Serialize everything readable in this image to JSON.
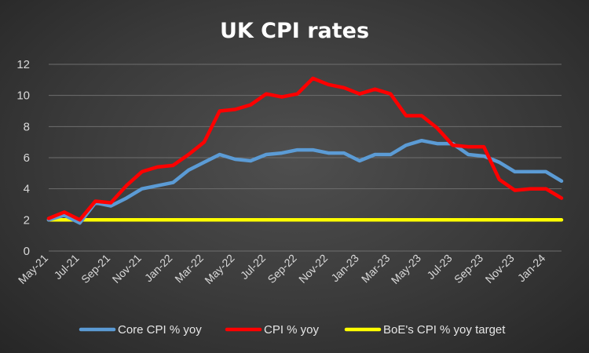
{
  "chart_data": {
    "type": "line",
    "title": "UK CPI rates",
    "xlabel": "",
    "ylabel": "",
    "ylim": [
      0,
      12
    ],
    "yticks": [
      0,
      2,
      4,
      6,
      8,
      10,
      12
    ],
    "grid": true,
    "legend_position": "bottom",
    "x": [
      "May-21",
      "Jun-21",
      "Jul-21",
      "Aug-21",
      "Sep-21",
      "Oct-21",
      "Nov-21",
      "Dec-21",
      "Jan-22",
      "Feb-22",
      "Mar-22",
      "Apr-22",
      "May-22",
      "Jun-22",
      "Jul-22",
      "Aug-22",
      "Sep-22",
      "Oct-22",
      "Nov-22",
      "Dec-22",
      "Jan-23",
      "Feb-23",
      "Mar-23",
      "Apr-23",
      "May-23",
      "Jun-23",
      "Jul-23",
      "Aug-23",
      "Sep-23",
      "Oct-23",
      "Nov-23",
      "Dec-23",
      "Jan-24",
      "Feb-24"
    ],
    "x_tick_labels": [
      "May-21",
      "Jul-21",
      "Sep-21",
      "Nov-21",
      "Jan-22",
      "Mar-22",
      "May-22",
      "Jul-22",
      "Sep-22",
      "Nov-22",
      "Jan-23",
      "Mar-23",
      "May-23",
      "Jul-23",
      "Sep-23",
      "Nov-23",
      "Jan-24"
    ],
    "series": [
      {
        "name": "Core CPI % yoy",
        "color": "#5b9bd5",
        "values": [
          2.0,
          2.3,
          1.8,
          3.1,
          2.9,
          3.4,
          4.0,
          4.2,
          4.4,
          5.2,
          5.7,
          6.2,
          5.9,
          5.8,
          6.2,
          6.3,
          6.5,
          6.5,
          6.3,
          6.3,
          5.8,
          6.2,
          6.2,
          6.8,
          7.1,
          6.9,
          6.9,
          6.2,
          6.1,
          5.7,
          5.1,
          5.1,
          5.1,
          4.5
        ]
      },
      {
        "name": "CPI % yoy",
        "color": "#ff0000",
        "values": [
          2.1,
          2.5,
          2.0,
          3.2,
          3.1,
          4.2,
          5.1,
          5.4,
          5.5,
          6.2,
          7.0,
          9.0,
          9.1,
          9.4,
          10.1,
          9.9,
          10.1,
          11.1,
          10.7,
          10.5,
          10.1,
          10.4,
          10.1,
          8.7,
          8.7,
          7.9,
          6.8,
          6.7,
          6.7,
          4.6,
          3.9,
          4.0,
          4.0,
          3.4
        ]
      },
      {
        "name": "BoE's CPI % yoy target",
        "color": "#ffff00",
        "values": [
          2,
          2,
          2,
          2,
          2,
          2,
          2,
          2,
          2,
          2,
          2,
          2,
          2,
          2,
          2,
          2,
          2,
          2,
          2,
          2,
          2,
          2,
          2,
          2,
          2,
          2,
          2,
          2,
          2,
          2,
          2,
          2,
          2,
          2
        ]
      }
    ]
  }
}
